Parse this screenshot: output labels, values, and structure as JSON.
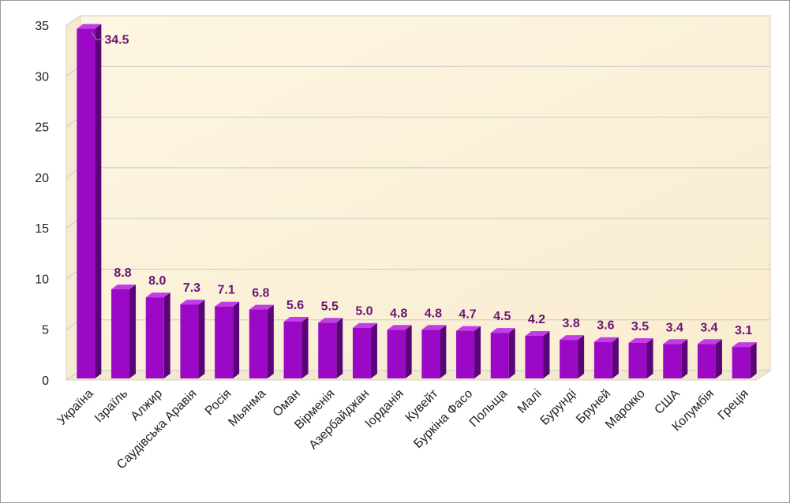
{
  "chart_data": {
    "type": "bar",
    "categories": [
      "Україна",
      "Ізраїль",
      "Алжир",
      "Саудівська Аравія",
      "Росія",
      "Мьянма",
      "Оман",
      "Вірменія",
      "Азербайджан",
      "Іорданія",
      "Кувейт",
      "Буркіна Фасо",
      "Польща",
      "Малі",
      "Бурунді",
      "Бруней",
      "Марокко",
      "США",
      "Колумбія",
      "Греція"
    ],
    "values": [
      34.5,
      8.8,
      8.0,
      7.3,
      7.1,
      6.8,
      5.6,
      5.5,
      5.0,
      4.8,
      4.8,
      4.7,
      4.5,
      4.2,
      3.8,
      3.6,
      3.5,
      3.4,
      3.4,
      3.1
    ],
    "value_labels": [
      "34.5",
      "8.8",
      "8.0",
      "7.3",
      "7.1",
      "6.8",
      "5.6",
      "5.5",
      "5.0",
      "4.8",
      "4.8",
      "4.7",
      "4.5",
      "4.2",
      "3.8",
      "3.6",
      "3.5",
      "3.4",
      "3.4",
      "3.1"
    ],
    "yticks": [
      "0",
      "5",
      "10",
      "15",
      "20",
      "25",
      "30",
      "35"
    ],
    "ylim": [
      0,
      35
    ],
    "grid": true,
    "colors": {
      "bar_front": "#9b08c6",
      "bar_side": "#5a0577",
      "bar_top": "#c13ee6",
      "data_label": "#6a1572",
      "wall": "#fdf3dc",
      "floor": "#f3e9cf",
      "gridline": "#c9c9c9"
    }
  }
}
